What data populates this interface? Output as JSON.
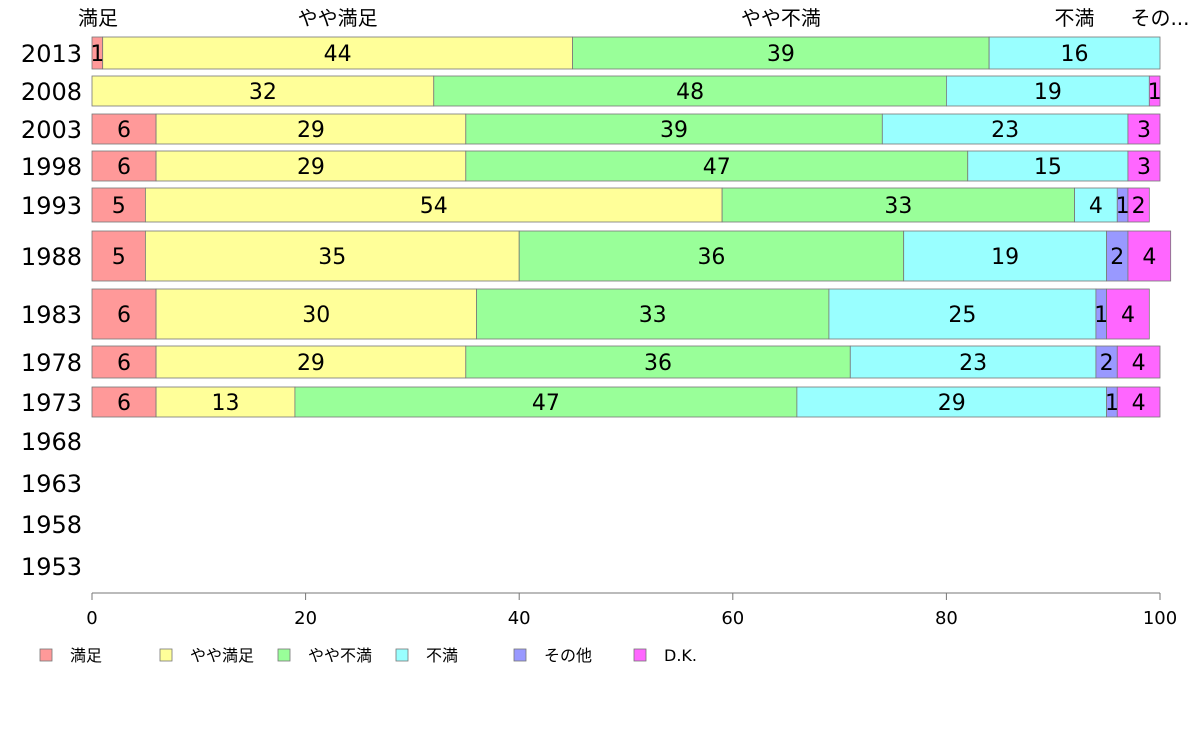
{
  "chart_data": {
    "type": "bar",
    "orientation": "horizontal",
    "stacked": true,
    "categories": [
      "2013",
      "2008",
      "2003",
      "1998",
      "1993",
      "1988",
      "1983",
      "1978",
      "1973",
      "1968",
      "1963",
      "1958",
      "1953"
    ],
    "series": [
      {
        "name": "満足",
        "color": "#ff9999",
        "values": [
          1,
          0,
          6,
          6,
          5,
          5,
          6,
          6,
          6,
          null,
          null,
          null,
          null
        ]
      },
      {
        "name": "やや満足",
        "color": "#ffff99",
        "values": [
          44,
          32,
          29,
          29,
          54,
          35,
          30,
          29,
          13,
          null,
          null,
          null,
          null
        ]
      },
      {
        "name": "やや不満",
        "color": "#99ff99",
        "values": [
          39,
          48,
          39,
          47,
          33,
          36,
          33,
          36,
          47,
          null,
          null,
          null,
          null
        ]
      },
      {
        "name": "不満",
        "color": "#99ffff",
        "values": [
          16,
          19,
          23,
          15,
          4,
          19,
          25,
          23,
          29,
          null,
          null,
          null,
          null
        ]
      },
      {
        "name": "その他",
        "color": "#9999ff",
        "values": [
          0,
          0,
          0,
          0,
          1,
          2,
          1,
          2,
          1,
          null,
          null,
          null,
          null
        ]
      },
      {
        "name": "D.K.",
        "color": "#ff66ff",
        "values": [
          0,
          1,
          3,
          3,
          2,
          4,
          4,
          4,
          4,
          null,
          null,
          null,
          null
        ]
      }
    ],
    "top_labels": [
      "満足",
      "やや満足",
      "やや不満",
      "不満",
      "その..."
    ],
    "xlim": [
      0,
      100
    ],
    "xticks": [
      "0",
      "20",
      "40",
      "60",
      "80",
      "100"
    ],
    "legend_position": "bottom-left",
    "grid": false
  }
}
